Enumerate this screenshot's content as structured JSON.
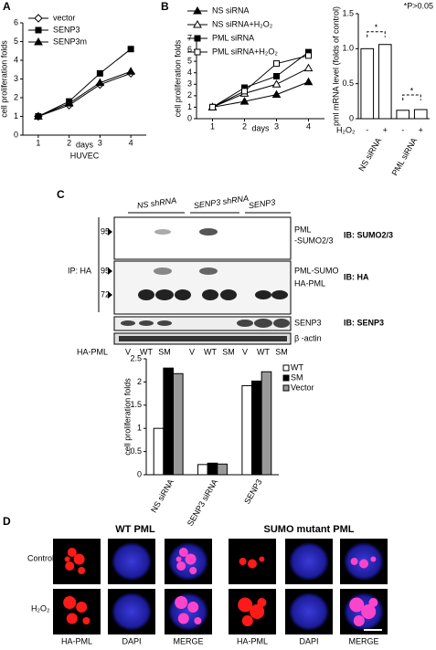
{
  "panels": [
    "A",
    "B",
    "C",
    "D"
  ],
  "chart_data": [
    {
      "type": "line",
      "xlabel": "days",
      "ylabel": "cell proliferation folds",
      "subtitle": "HUVEC",
      "x": [
        1,
        2,
        3,
        4
      ],
      "xlim": [
        0.5,
        4.5
      ],
      "xticks": [
        1,
        2,
        3,
        4
      ],
      "ylim": [
        0,
        6
      ],
      "yticks": [
        0,
        1,
        2,
        3,
        4,
        5,
        6
      ],
      "legend": "upper left",
      "series": [
        {
          "name": "vector",
          "color": "#000000",
          "marker": "diamond-open",
          "values": [
            1,
            1.6,
            2.7,
            3.3
          ]
        },
        {
          "name": "SENP3",
          "color": "#000000",
          "marker": "square",
          "values": [
            1,
            1.8,
            3.3,
            4.6
          ]
        },
        {
          "name": "SENP3m",
          "color": "#000000",
          "marker": "triangle",
          "values": [
            1,
            1.7,
            2.8,
            3.4
          ]
        }
      ]
    },
    {
      "type": "line",
      "xlabel": "days",
      "ylabel": "cell proliferation folds",
      "x": [
        1,
        2,
        3,
        4
      ],
      "xlim": [
        0.5,
        4.5
      ],
      "xticks": [
        1,
        2,
        3,
        4
      ],
      "ylim": [
        0,
        7
      ],
      "yticks": [
        0,
        1,
        2,
        3,
        4,
        5,
        6,
        7
      ],
      "legend": "top",
      "series": [
        {
          "name": "NS  siRNA",
          "color": "#000000",
          "marker": "triangle",
          "values": [
            1,
            1.5,
            2.1,
            3.2
          ]
        },
        {
          "name": "NS  siRNA+H₂O₂",
          "color": "#000000",
          "marker": "triangle-open",
          "values": [
            1,
            2.2,
            3.0,
            4.4
          ]
        },
        {
          "name": "PML siRNA",
          "color": "#000000",
          "marker": "square",
          "values": [
            1,
            2.7,
            3.7,
            5.8
          ]
        },
        {
          "name": "PML siRNA+H₂O₂",
          "color": "#000000",
          "marker": "square-open",
          "values": [
            1,
            2.4,
            4.8,
            5.5
          ]
        }
      ]
    },
    {
      "type": "bar",
      "ylabel": "pml mRNA level (folds of control)",
      "treatment_label": "H₂O₂",
      "categories": [
        "-",
        "+",
        "-",
        "+"
      ],
      "group_labels": [
        "NS siRNA",
        "PML siRNA"
      ],
      "values": [
        1.0,
        1.06,
        0.12,
        0.13
      ],
      "color": "#ffffff",
      "ylim": [
        0,
        1.5
      ],
      "yticks": [
        0,
        0.5,
        {
          "value": 1,
          "label": "1.0"
        },
        1.5
      ],
      "annotations": [
        "*",
        "*P>0.05",
        "*"
      ]
    },
    {
      "type": "grouped-bar",
      "ylabel": "cell proliferation folds",
      "legend": "upper right",
      "categories": [
        "NS siRNA",
        "SENP3 siRNA",
        "SENP3"
      ],
      "ylim": [
        0,
        2.5
      ],
      "yticks": [
        0,
        0.5,
        1,
        1.5,
        2,
        2.5
      ],
      "series": [
        {
          "name": "WT",
          "color": "#ffffff",
          "values": [
            1.0,
            0.22,
            1.92
          ]
        },
        {
          "name": "SM",
          "color": "#000000",
          "values": [
            2.3,
            0.25,
            2.02
          ]
        },
        {
          "name": "Vector",
          "color": "#999999",
          "values": [
            2.18,
            0.23,
            2.22
          ]
        }
      ]
    }
  ],
  "blot": {
    "columns": [
      "NS shRNA",
      "SENP3 shRNA",
      "SENP3"
    ],
    "ip_label": "IP: HA",
    "markers": [
      "95",
      "95",
      "72"
    ],
    "band_labels": [
      "PML",
      "-SUMO2/3",
      "PML-SUMO",
      "HA-PML",
      "SENP3",
      "β -actin"
    ],
    "ib_labels": [
      "IB: SUMO2/3",
      "IB: HA",
      "IB: SENP3"
    ],
    "row_label": "HA-PML",
    "lanes": [
      "V",
      "WT",
      "SM",
      "V",
      "WT",
      "SM",
      "V",
      "WT",
      "SM"
    ]
  },
  "microscopy": {
    "titles": [
      "WT PML",
      "SUMO mutant  PML"
    ],
    "rows": [
      "Control",
      "H₂O₂"
    ],
    "columns": [
      "HA-PML",
      "DAPI",
      "MERGE",
      "HA-PML",
      "DAPI",
      "MERGE"
    ]
  }
}
